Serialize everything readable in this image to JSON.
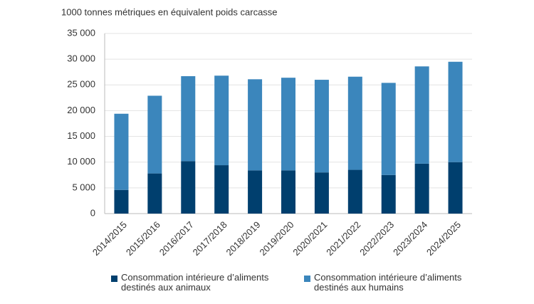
{
  "chart_data": {
    "type": "stacked_bar",
    "title": "1000 tonnes métriques en équivalent poids carcasse",
    "categories": [
      "2014/2015",
      "2015/2016",
      "2016/2017",
      "2017/2018",
      "2018/2019",
      "2019/2020",
      "2020/2021",
      "2021/2022",
      "2022/2023",
      "2023/2024",
      "2024/2025"
    ],
    "series": [
      {
        "name": "Consommation intérieure d’aliments destinés aux animaux",
        "color": "#003f6e",
        "values": [
          4600,
          7800,
          10200,
          9400,
          8400,
          8400,
          8000,
          8500,
          7500,
          9700,
          10000
        ]
      },
      {
        "name": "Consommation intérieure d’aliments destinés aux humains",
        "color": "#3b86bc",
        "values": [
          14800,
          15100,
          16500,
          17400,
          17700,
          18000,
          18000,
          18100,
          17900,
          18900,
          19500
        ]
      }
    ],
    "ylim": [
      0,
      35000
    ],
    "yticks": [
      0,
      {
        "value": 5000,
        "label": "5 000"
      },
      {
        "value": 10000,
        "label": "10 000"
      },
      {
        "value": 15000,
        "label": "15 000"
      },
      {
        "value": 20000,
        "label": "20 000"
      },
      {
        "value": 25000,
        "label": "25 000"
      },
      {
        "value": 30000,
        "label": "30 000"
      },
      {
        "value": 35000,
        "label": "35 000"
      }
    ],
    "grid": true
  }
}
